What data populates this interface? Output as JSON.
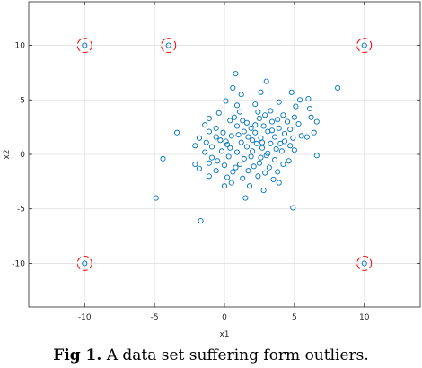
{
  "chart_data": {
    "type": "scatter",
    "title": "",
    "xlabel": "x1",
    "ylabel": "x2",
    "xlim": [
      -14,
      14
    ],
    "ylim": [
      -14,
      14
    ],
    "xticks": [
      -10,
      -5,
      0,
      5,
      10
    ],
    "yticks": [
      -10,
      -5,
      0,
      5,
      10
    ],
    "xtick_labels": [
      "-10",
      "-5",
      "0",
      "5",
      "10"
    ],
    "ytick_labels": [
      "-10",
      "-5",
      "0",
      "5",
      "10"
    ],
    "grid": true,
    "colors": {
      "points": "#0072bd",
      "outlier_circles": "#ff0000",
      "grid": "#dfdfdf",
      "axes": "#262626"
    },
    "series": [
      {
        "marker": "circle",
        "points": [
          [
            0.8,
            7.4
          ],
          [
            3.0,
            6.7
          ],
          [
            4.8,
            5.7
          ],
          [
            5.4,
            5.0
          ],
          [
            6.0,
            5.1
          ],
          [
            8.1,
            6.1
          ],
          [
            0.6,
            6.1
          ],
          [
            1.2,
            5.5
          ],
          [
            2.6,
            5.7
          ],
          [
            0.1,
            4.9
          ],
          [
            0.9,
            4.5
          ],
          [
            2.2,
            4.6
          ],
          [
            3.9,
            4.8
          ],
          [
            5.1,
            4.4
          ],
          [
            6.1,
            4.2
          ],
          [
            -0.4,
            3.8
          ],
          [
            1.1,
            3.9
          ],
          [
            2.4,
            3.9
          ],
          [
            3.3,
            4.0
          ],
          [
            4.2,
            3.6
          ],
          [
            5.0,
            3.4
          ],
          [
            6.2,
            3.4
          ],
          [
            -1.1,
            3.3
          ],
          [
            0.4,
            3.1
          ],
          [
            1.3,
            3.1
          ],
          [
            2.5,
            3.3
          ],
          [
            3.4,
            3.0
          ],
          [
            4.5,
            3.0
          ],
          [
            5.3,
            2.8
          ],
          [
            6.6,
            3.0
          ],
          [
            -1.4,
            2.7
          ],
          [
            -0.6,
            2.4
          ],
          [
            0.9,
            2.6
          ],
          [
            1.9,
            2.4
          ],
          [
            2.8,
            2.6
          ],
          [
            3.9,
            2.4
          ],
          [
            4.7,
            2.3
          ],
          [
            -1.1,
            2.1
          ],
          [
            -0.1,
            2.0
          ],
          [
            1.4,
            2.1
          ],
          [
            2.2,
            2.0
          ],
          [
            3.1,
            2.1
          ],
          [
            4.3,
            1.9
          ],
          [
            5.5,
            1.7
          ],
          [
            6.4,
            2.0
          ],
          [
            -3.4,
            2.0
          ],
          [
            -1.8,
            1.5
          ],
          [
            -0.6,
            1.6
          ],
          [
            0.5,
            1.7
          ],
          [
            1.7,
            1.6
          ],
          [
            2.6,
            1.5
          ],
          [
            3.6,
            1.6
          ],
          [
            4.9,
            1.5
          ],
          [
            -1.3,
            1.1
          ],
          [
            0.1,
            1.2
          ],
          [
            1.2,
            1.1
          ],
          [
            2.3,
            1.0
          ],
          [
            3.3,
            1.0
          ],
          [
            4.3,
            1.2
          ],
          [
            5.9,
            1.6
          ],
          [
            -2.1,
            0.8
          ],
          [
            -0.9,
            0.7
          ],
          [
            0.4,
            0.6
          ],
          [
            1.6,
            0.7
          ],
          [
            2.7,
            0.6
          ],
          [
            3.7,
            0.5
          ],
          [
            4.7,
            0.8
          ],
          [
            -1.4,
            0.2
          ],
          [
            -0.2,
            0.3
          ],
          [
            0.9,
            0.2
          ],
          [
            2.0,
            0.3
          ],
          [
            3.1,
            0.1
          ],
          [
            4.1,
            0.3
          ],
          [
            5.0,
            0.4
          ],
          [
            6.6,
            -0.1
          ],
          [
            -4.4,
            -0.4
          ],
          [
            -0.9,
            -0.3
          ],
          [
            0.3,
            -0.2
          ],
          [
            1.4,
            -0.4
          ],
          [
            2.6,
            -0.3
          ],
          [
            3.6,
            -0.5
          ],
          [
            4.6,
            -0.6
          ],
          [
            -2.1,
            -0.9
          ],
          [
            -1.1,
            -0.8
          ],
          [
            0.0,
            -1.0
          ],
          [
            1.1,
            -0.9
          ],
          [
            2.1,
            -1.1
          ],
          [
            3.2,
            -1.2
          ],
          [
            4.2,
            -0.9
          ],
          [
            -1.8,
            -1.3
          ],
          [
            -0.6,
            -1.5
          ],
          [
            0.6,
            -1.6
          ],
          [
            1.7,
            -1.5
          ],
          [
            2.9,
            -1.7
          ],
          [
            3.8,
            -1.6
          ],
          [
            -1.1,
            -2.0
          ],
          [
            0.2,
            -2.1
          ],
          [
            1.3,
            -2.2
          ],
          [
            2.4,
            -2.0
          ],
          [
            3.5,
            -2.3
          ],
          [
            0.5,
            -2.6
          ],
          [
            1.8,
            -2.9
          ],
          [
            3.9,
            -2.6
          ],
          [
            0.0,
            -2.9
          ],
          [
            2.8,
            -3.3
          ],
          [
            1.5,
            -4.0
          ],
          [
            -4.9,
            -4.0
          ],
          [
            4.9,
            -4.9
          ],
          [
            -1.7,
            -6.1
          ],
          [
            2.0,
            1.3
          ],
          [
            1.0,
            1.8
          ],
          [
            2.9,
            3.6
          ],
          [
            0.7,
            3.4
          ],
          [
            3.8,
            3.2
          ],
          [
            -0.3,
            1.3
          ],
          [
            2.5,
            -0.8
          ],
          [
            1.6,
            2.9
          ],
          [
            3.0,
            -0.1
          ],
          [
            0.2,
            0.9
          ],
          [
            4.0,
            1.0
          ],
          [
            -0.5,
            -0.6
          ],
          [
            2.2,
            2.7
          ],
          [
            1.9,
            -0.2
          ],
          [
            3.4,
            2.2
          ],
          [
            0.8,
            -1.2
          ],
          [
            2.7,
            1.1
          ],
          [
            -10,
            10
          ],
          [
            -4,
            10
          ],
          [
            10,
            10
          ],
          [
            -10,
            -10
          ],
          [
            10,
            -10
          ]
        ]
      }
    ],
    "outliers_circled": [
      [
        -10,
        10
      ],
      [
        -4,
        10
      ],
      [
        10,
        10
      ],
      [
        -10,
        -10
      ],
      [
        10,
        -10
      ]
    ]
  },
  "caption": {
    "label": "Fig 1.",
    "text": " A data set suffering form outliers."
  }
}
